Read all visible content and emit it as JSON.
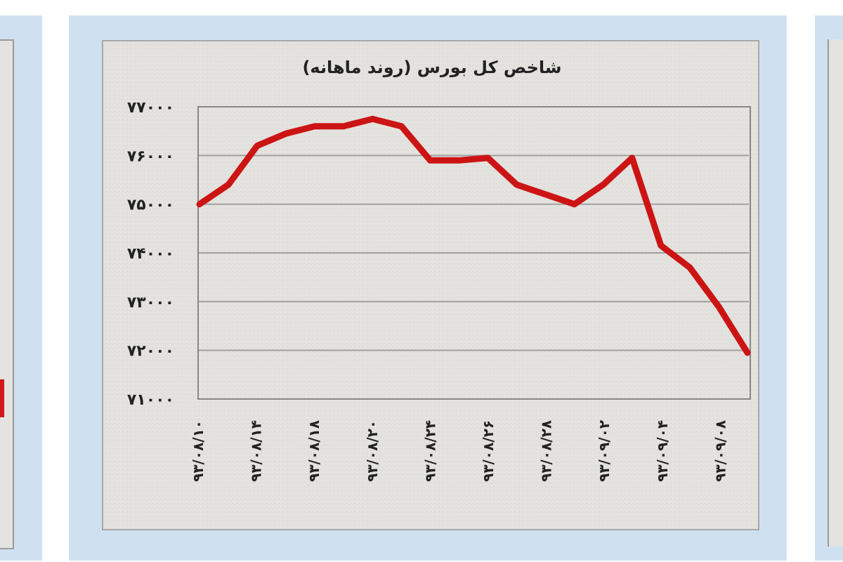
{
  "chart_data": {
    "type": "line",
    "title": "شاخص کل بورس (روند ماهانه)",
    "xlabel": "",
    "ylabel": "",
    "ylim": [
      71000,
      77000
    ],
    "y_ticks": [
      "۷۱۰۰۰",
      "۷۲۰۰۰",
      "۷۳۰۰۰",
      "۷۴۰۰۰",
      "۷۵۰۰۰",
      "۷۶۰۰۰",
      "۷۷۰۰۰"
    ],
    "y_tick_values": [
      71000,
      72000,
      73000,
      74000,
      75000,
      76000,
      77000
    ],
    "x_tick_labels": [
      "۹۳/۰۸/۱۰",
      "۹۳/۰۸/۱۴",
      "۹۳/۰۸/۱۸",
      "۹۳/۰۸/۲۰",
      "۹۳/۰۸/۲۴",
      "۹۳/۰۸/۲۶",
      "۹۳/۰۸/۲۸",
      "۹۳/۰۹/۰۲",
      "۹۳/۰۹/۰۴",
      "۹۳/۰۹/۰۸"
    ],
    "grid": true,
    "legend": "none",
    "series": [
      {
        "color": "#cc1414",
        "values": [
          75000,
          75400,
          76200,
          76450,
          76600,
          76600,
          76750,
          76600,
          75900,
          75900,
          75950,
          75400,
          75200,
          75000,
          75400,
          75950,
          74150,
          73700,
          72900,
          71950
        ]
      }
    ]
  }
}
